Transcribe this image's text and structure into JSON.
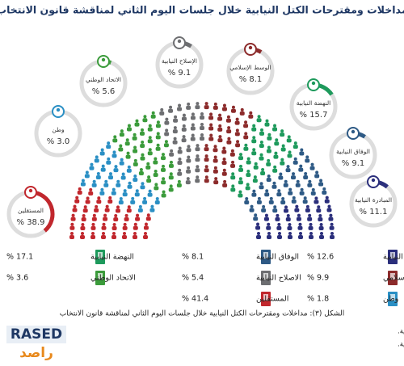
{
  "chart_data": [
    {
      "type": "ring-bubbles",
      "title": "مداخلات ومقترحات الكتل النيابية خلال جلسات اليوم الثاني لمناقشة قانون الانتخاب",
      "categories": [
        "المستقلين",
        "وطن",
        "الاتحاد الوطني",
        "الإصلاح النيابية",
        "الوسط الإسلامي",
        "النهضة النيابية",
        "الوفاق النيابية",
        "المبادرة النيابية"
      ],
      "values": [
        38.9,
        3.0,
        5.6,
        9.1,
        8.1,
        15.7,
        9.1,
        11.1
      ],
      "value_labels": [
        "% 38.9",
        "% 3.0",
        "% 5.6",
        "% 9.1",
        "% 8.1",
        "% 15.7",
        "% 9.1",
        "% 11.1"
      ],
      "colors": [
        "#c1272d",
        "#2a8fc4",
        "#3b9b3b",
        "#6d6e71",
        "#8c2b2b",
        "#1e9a5c",
        "#2e5a85",
        "#2b2f7c"
      ]
    },
    {
      "type": "icon-list",
      "categories": [
        "المبادرة النيابية",
        "الوسط الإسلامي",
        "وطن",
        "الوفاق النيابية",
        "الاصلاح النيابية",
        "المستقلين",
        "النهضة النيابية",
        "الاتحاد الوطني"
      ],
      "values": [
        12.6,
        9.9,
        1.8,
        8.1,
        5.4,
        41.4,
        17.1,
        3.6
      ],
      "value_labels": [
        "% 12.6",
        "% 9.9",
        "% 1.8",
        "% 8.1",
        "% 5.4",
        "% 41.4",
        "% 17.1",
        "% 3.6"
      ],
      "colors": [
        "#2b2f7c",
        "#8c2b2b",
        "#2a8fc4",
        "#2e5a85",
        "#6d6e71",
        "#c1272d",
        "#1e9a5c",
        "#3b9b3b"
      ]
    }
  ],
  "caption": "الشكل (٣): مداخلات ومقترحات الكتل النيابية خلال جلسات اليوم الثاني لمناقشة قانون الانتخاب",
  "notes": [
    "ملاحظة: الأرقام الظاهرة داخل الدوائر تبين نسب المداخلات التي قدمتها الكتل النيابية.",
    "ملاحظة: الأرقام الظاهرة في أسفل الصورة تبين نسب الاقتراحات التي قدمتها الكتل النيابية."
  ],
  "logo": {
    "latin": "RASED",
    "arabic": "راصد"
  }
}
